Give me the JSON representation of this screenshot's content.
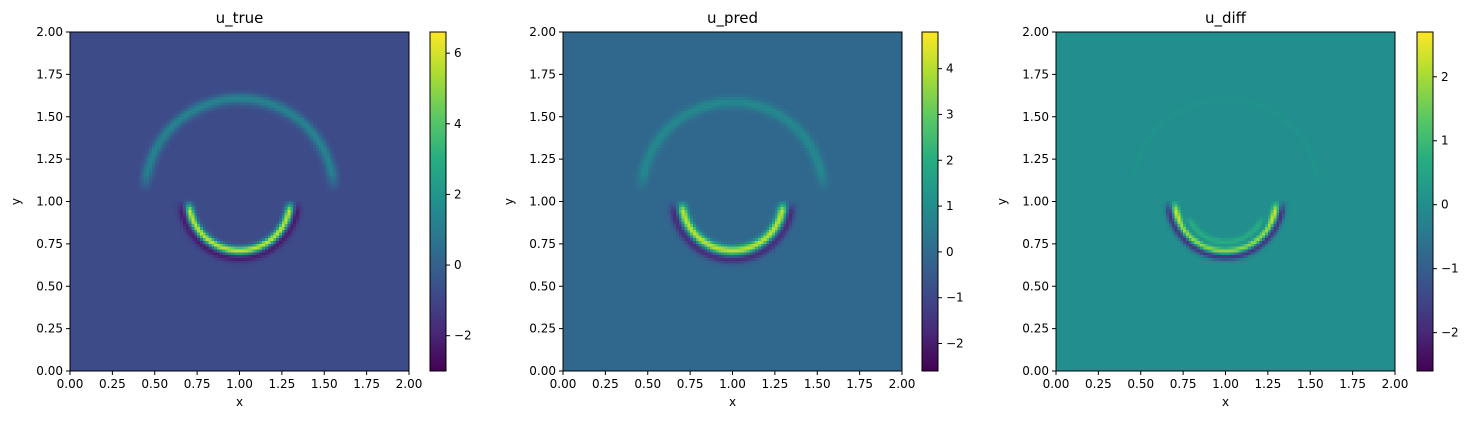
{
  "figure": {
    "background": "#ffffff"
  },
  "chart_data": [
    {
      "type": "heatmap",
      "title": "u_true",
      "xlabel": "x",
      "ylabel": "y",
      "xlim": [
        0,
        2
      ],
      "ylim": [
        0,
        2
      ],
      "xticks": [
        "0.00",
        "0.25",
        "0.50",
        "0.75",
        "1.00",
        "1.25",
        "1.50",
        "1.75",
        "2.00"
      ],
      "yticks": [
        "0.00",
        "0.25",
        "0.50",
        "0.75",
        "1.00",
        "1.25",
        "1.50",
        "1.75",
        "2.00"
      ],
      "colormap": "viridis",
      "colorbar": {
        "min": -3.0,
        "max": 6.6,
        "ticks": [
          -2,
          0,
          2,
          4,
          6
        ],
        "tick_labels": [
          "−2",
          "0",
          "2",
          "4",
          "6"
        ]
      },
      "background_value": -0.8,
      "features": [
        {
          "shape": "ring",
          "center": [
            1.0,
            1.05
          ],
          "radius": 0.56,
          "width": 0.05,
          "offset": -0.05,
          "angle_from": 0,
          "angle_to": 180,
          "value_peak": 2.0,
          "undershoot": -1.6
        },
        {
          "shape": "ring",
          "center": [
            1.0,
            1.01
          ],
          "radius": 0.3,
          "width": 0.035,
          "offset": 0.0,
          "angle_from": 180,
          "angle_to": 360,
          "value_peak": 6.5,
          "undershoot": -3.0
        }
      ]
    },
    {
      "type": "heatmap",
      "title": "u_pred",
      "xlabel": "x",
      "ylabel": "y",
      "xlim": [
        0,
        2
      ],
      "ylim": [
        0,
        2
      ],
      "xticks": [
        "0.00",
        "0.25",
        "0.50",
        "0.75",
        "1.00",
        "1.25",
        "1.50",
        "1.75",
        "2.00"
      ],
      "yticks": [
        "0.00",
        "0.25",
        "0.50",
        "0.75",
        "1.00",
        "1.25",
        "1.50",
        "1.75",
        "2.00"
      ],
      "colormap": "viridis",
      "colorbar": {
        "min": -2.6,
        "max": 4.8,
        "ticks": [
          -2,
          -1,
          0,
          1,
          2,
          3,
          4
        ],
        "tick_labels": [
          "−2",
          "−1",
          "0",
          "1",
          "2",
          "3",
          "4"
        ]
      },
      "background_value": -0.1,
      "features": [
        {
          "shape": "ring",
          "center": [
            1.0,
            1.05
          ],
          "radius": 0.54,
          "width": 0.05,
          "offset": -0.06,
          "angle_from": 0,
          "angle_to": 180,
          "value_peak": 1.8,
          "undershoot": -1.2
        },
        {
          "shape": "ring",
          "center": [
            1.0,
            1.01
          ],
          "radius": 0.3,
          "width": 0.04,
          "offset": 0.0,
          "angle_from": 180,
          "angle_to": 360,
          "value_peak": 4.6,
          "undershoot": -2.4
        }
      ]
    },
    {
      "type": "heatmap",
      "title": "u_diff",
      "xlabel": "x",
      "ylabel": "y",
      "xlim": [
        0,
        2
      ],
      "ylim": [
        0,
        2
      ],
      "xticks": [
        "0.00",
        "0.25",
        "0.50",
        "0.75",
        "1.00",
        "1.25",
        "1.50",
        "1.75",
        "2.00"
      ],
      "yticks": [
        "0.00",
        "0.25",
        "0.50",
        "0.75",
        "1.00",
        "1.25",
        "1.50",
        "1.75",
        "2.00"
      ],
      "colormap": "viridis",
      "colorbar": {
        "min": -2.6,
        "max": 2.7,
        "ticks": [
          -2,
          -1,
          0,
          1,
          2
        ],
        "tick_labels": [
          "−2",
          "−1",
          "0",
          "1",
          "2"
        ]
      },
      "background_value": 0.0,
      "features": [
        {
          "shape": "ring",
          "center": [
            1.0,
            1.05
          ],
          "radius": 0.56,
          "width": 0.04,
          "offset": -0.05,
          "angle_from": 0,
          "angle_to": 180,
          "value_peak": 0.4,
          "undershoot": -0.4
        },
        {
          "shape": "ring",
          "center": [
            1.0,
            1.01
          ],
          "radius": 0.3,
          "width": 0.03,
          "offset": 0.0,
          "angle_from": 180,
          "angle_to": 360,
          "value_peak": 2.6,
          "undershoot": -2.6
        },
        {
          "shape": "ring",
          "center": [
            1.0,
            1.0
          ],
          "radius": 0.24,
          "width": 0.03,
          "offset": 0.0,
          "angle_from": 200,
          "angle_to": 340,
          "value_peak": 0.8,
          "undershoot": -1.0
        }
      ]
    }
  ]
}
